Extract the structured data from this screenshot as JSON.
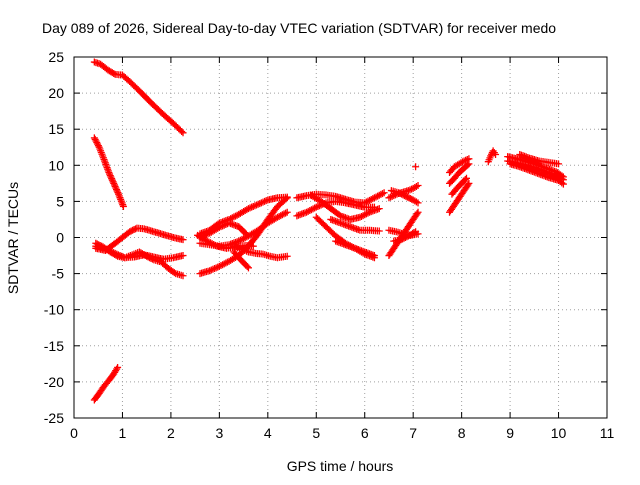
{
  "chart_data": {
    "type": "scatter",
    "title": "Day 089 of 2026, Sidereal Day-to-day VTEC variation (SDTVAR) for receiver medo",
    "xlabel": "GPS time / hours",
    "ylabel": "SDTVAR / TECUs",
    "xlim": [
      0,
      11
    ],
    "ylim": [
      -25,
      25
    ],
    "xticks": [
      "0",
      "1",
      "2",
      "3",
      "4",
      "5",
      "6",
      "7",
      "8",
      "9",
      "10",
      "11"
    ],
    "yticks": [
      "25",
      "20",
      "15",
      "10",
      "5",
      "0",
      "-5",
      "-10",
      "-15",
      "-20",
      "-25"
    ],
    "grid": true,
    "marker": "plus",
    "color": "#ff0000",
    "series": [
      {
        "x": [
          0.42,
          0.55,
          0.7,
          0.85,
          1.0,
          1.15,
          1.35,
          1.6,
          1.85,
          2.05,
          2.25
        ],
        "y": [
          24.3,
          24.0,
          23.2,
          22.6,
          22.5,
          21.6,
          20.3,
          18.6,
          17.0,
          15.8,
          14.5
        ]
      },
      {
        "x": [
          0.42,
          0.52,
          0.62,
          0.72,
          0.82,
          0.92,
          1.02
        ],
        "y": [
          13.8,
          12.5,
          10.8,
          9.0,
          7.5,
          6.0,
          4.3
        ]
      },
      {
        "x": [
          0.42,
          0.52,
          0.62,
          0.72,
          0.82,
          0.9
        ],
        "y": [
          -22.5,
          -21.6,
          -20.6,
          -19.8,
          -18.9,
          -18.0
        ]
      },
      {
        "x": [
          0.45,
          0.65,
          0.85,
          1.0,
          1.15,
          1.3,
          1.45,
          1.65,
          1.85,
          2.05,
          2.25
        ],
        "y": [
          -1.5,
          -1.8,
          -0.8,
          0.0,
          0.8,
          1.3,
          1.2,
          0.8,
          0.4,
          0.0,
          -0.3
        ]
      },
      {
        "x": [
          0.45,
          0.6,
          0.75,
          0.9,
          1.05,
          1.2,
          1.35,
          1.5,
          1.65,
          1.8,
          1.95,
          2.1,
          2.25
        ],
        "y": [
          -0.8,
          -1.3,
          -2.0,
          -2.6,
          -2.8,
          -2.4,
          -2.0,
          -2.6,
          -3.1,
          -3.4,
          -4.3,
          -5.0,
          -5.3
        ]
      },
      {
        "x": [
          0.45,
          0.65,
          0.85,
          1.05,
          1.25,
          1.45,
          1.65,
          1.85,
          2.05,
          2.25
        ],
        "y": [
          -1.2,
          -1.6,
          -2.2,
          -2.8,
          -2.7,
          -2.4,
          -2.7,
          -3.0,
          -2.8,
          -2.5
        ]
      },
      {
        "x": [
          2.6,
          2.8,
          3.0,
          3.2,
          3.4,
          3.6,
          3.8,
          4.0,
          4.2,
          4.4
        ],
        "y": [
          -5.0,
          -4.6,
          -4.0,
          -3.3,
          -2.5,
          -1.2,
          0.5,
          2.5,
          4.3,
          5.5
        ]
      },
      {
        "x": [
          2.6,
          2.8,
          3.0,
          3.2,
          3.4,
          3.6,
          3.8,
          4.0,
          4.2,
          4.4
        ],
        "y": [
          0.5,
          1.0,
          2.0,
          2.5,
          3.2,
          4.0,
          4.6,
          5.2,
          5.5,
          5.6
        ]
      },
      {
        "x": [
          2.6,
          2.8,
          3.0,
          3.2,
          3.4,
          3.6,
          3.8,
          4.0,
          4.2,
          4.4
        ],
        "y": [
          -0.8,
          -1.0,
          -1.2,
          -1.0,
          -0.5,
          0.2,
          1.0,
          2.0,
          2.8,
          3.5
        ]
      },
      {
        "x": [
          2.55,
          2.75,
          2.95,
          3.15,
          3.35,
          3.55,
          3.7
        ],
        "y": [
          0.3,
          -0.5,
          -1.2,
          -1.5,
          -1.3,
          -1.1,
          -1.2
        ]
      },
      {
        "x": [
          3.3,
          3.45,
          3.6,
          3.75,
          3.9,
          4.05,
          4.2,
          4.4
        ],
        "y": [
          -1.2,
          -1.6,
          -2.0,
          -2.2,
          -2.3,
          -2.6,
          -2.8,
          -2.6
        ]
      },
      {
        "x": [
          2.6,
          2.8,
          3.0,
          3.2,
          3.4,
          3.55
        ],
        "y": [
          0.0,
          0.6,
          1.4,
          2.0,
          1.5,
          0.5
        ]
      },
      {
        "x": [
          3.3,
          3.4,
          3.5,
          3.6
        ],
        "y": [
          -2.0,
          -2.8,
          -3.5,
          -4.2
        ]
      },
      {
        "x": [
          4.6,
          4.8,
          5.0,
          5.2,
          5.4,
          5.6,
          5.8,
          6.0,
          6.2,
          6.4
        ],
        "y": [
          5.5,
          5.8,
          6.0,
          5.9,
          5.7,
          5.3,
          4.9,
          4.8,
          5.5,
          6.2
        ]
      },
      {
        "x": [
          4.6,
          4.8,
          5.0,
          5.2,
          5.4,
          5.6,
          5.8,
          6.0,
          6.2
        ],
        "y": [
          3.0,
          3.5,
          4.2,
          4.8,
          5.0,
          4.8,
          4.5,
          4.2,
          4.2
        ]
      },
      {
        "x": [
          4.9,
          5.1,
          5.3,
          5.5,
          5.7,
          5.9,
          6.1,
          6.3
        ],
        "y": [
          5.8,
          5.0,
          4.0,
          3.0,
          2.5,
          2.8,
          3.5,
          4.0
        ]
      },
      {
        "x": [
          5.0,
          5.2,
          5.4,
          5.6,
          5.8,
          6.0,
          6.2
        ],
        "y": [
          2.8,
          1.5,
          0.2,
          -0.8,
          -1.5,
          -2.3,
          -2.8
        ]
      },
      {
        "x": [
          5.4,
          5.6,
          5.8,
          6.0,
          6.2
        ],
        "y": [
          -0.5,
          -1.0,
          -1.5,
          -2.0,
          -2.5
        ]
      },
      {
        "x": [
          5.3,
          5.5,
          5.7,
          5.9,
          6.1,
          6.3
        ],
        "y": [
          2.5,
          2.0,
          1.5,
          1.0,
          1.0,
          0.9
        ]
      },
      {
        "x": [
          6.5,
          6.6,
          6.7,
          6.8,
          6.9,
          7.0,
          7.1
        ],
        "y": [
          5.5,
          5.8,
          6.1,
          6.3,
          6.5,
          6.8,
          7.2
        ]
      },
      {
        "x": [
          6.55,
          6.7,
          6.85,
          7.0,
          7.1
        ],
        "y": [
          6.5,
          6.2,
          5.7,
          5.2,
          4.8
        ]
      },
      {
        "x": [
          6.5,
          6.6,
          6.7,
          6.8,
          6.9,
          7.0,
          7.1
        ],
        "y": [
          -2.5,
          -1.5,
          -0.5,
          0.5,
          1.5,
          2.5,
          3.5
        ]
      },
      {
        "x": [
          6.5,
          6.65,
          6.8,
          6.95,
          7.1
        ],
        "y": [
          1.0,
          0.8,
          0.5,
          0.3,
          0.5
        ]
      },
      {
        "x": [
          6.6,
          6.75,
          6.9,
          7.05
        ],
        "y": [
          -0.5,
          -0.3,
          0.2,
          0.8
        ]
      },
      {
        "x": [
          7.05
        ],
        "y": [
          9.8
        ]
      },
      {
        "x": [
          7.75,
          7.85,
          7.95,
          8.05,
          8.15
        ],
        "y": [
          9.0,
          9.8,
          10.2,
          10.6,
          10.9
        ]
      },
      {
        "x": [
          7.75,
          7.85,
          7.95,
          8.05,
          8.15
        ],
        "y": [
          7.5,
          8.2,
          9.0,
          9.6,
          10.2
        ]
      },
      {
        "x": [
          7.75,
          7.85,
          7.95,
          8.05,
          8.15
        ],
        "y": [
          3.5,
          4.5,
          5.5,
          6.5,
          7.5
        ]
      },
      {
        "x": [
          7.8,
          7.9,
          8.0,
          8.1
        ],
        "y": [
          6.0,
          6.8,
          7.5,
          8.2
        ]
      },
      {
        "x": [
          8.55,
          8.6,
          8.65,
          8.7
        ],
        "y": [
          10.5,
          11.3,
          12.0,
          11.5
        ]
      },
      {
        "x": [
          8.95,
          9.15,
          9.35,
          9.55,
          9.75,
          9.95,
          10.1
        ],
        "y": [
          11.2,
          10.9,
          10.5,
          10.1,
          9.6,
          9.1,
          8.4
        ]
      },
      {
        "x": [
          8.95,
          9.15,
          9.35,
          9.55,
          9.75,
          9.95,
          10.1
        ],
        "y": [
          10.6,
          10.3,
          10.0,
          9.6,
          9.1,
          8.6,
          8.0
        ]
      },
      {
        "x": [
          9.0,
          9.2,
          9.4,
          9.6,
          9.8,
          10.0,
          10.1
        ],
        "y": [
          10.2,
          9.8,
          9.3,
          8.8,
          8.3,
          7.9,
          7.4
        ]
      },
      {
        "x": [
          9.2,
          9.4,
          9.6,
          9.8,
          10.0
        ],
        "y": [
          11.5,
          11.0,
          10.6,
          10.4,
          10.2
        ]
      }
    ]
  }
}
